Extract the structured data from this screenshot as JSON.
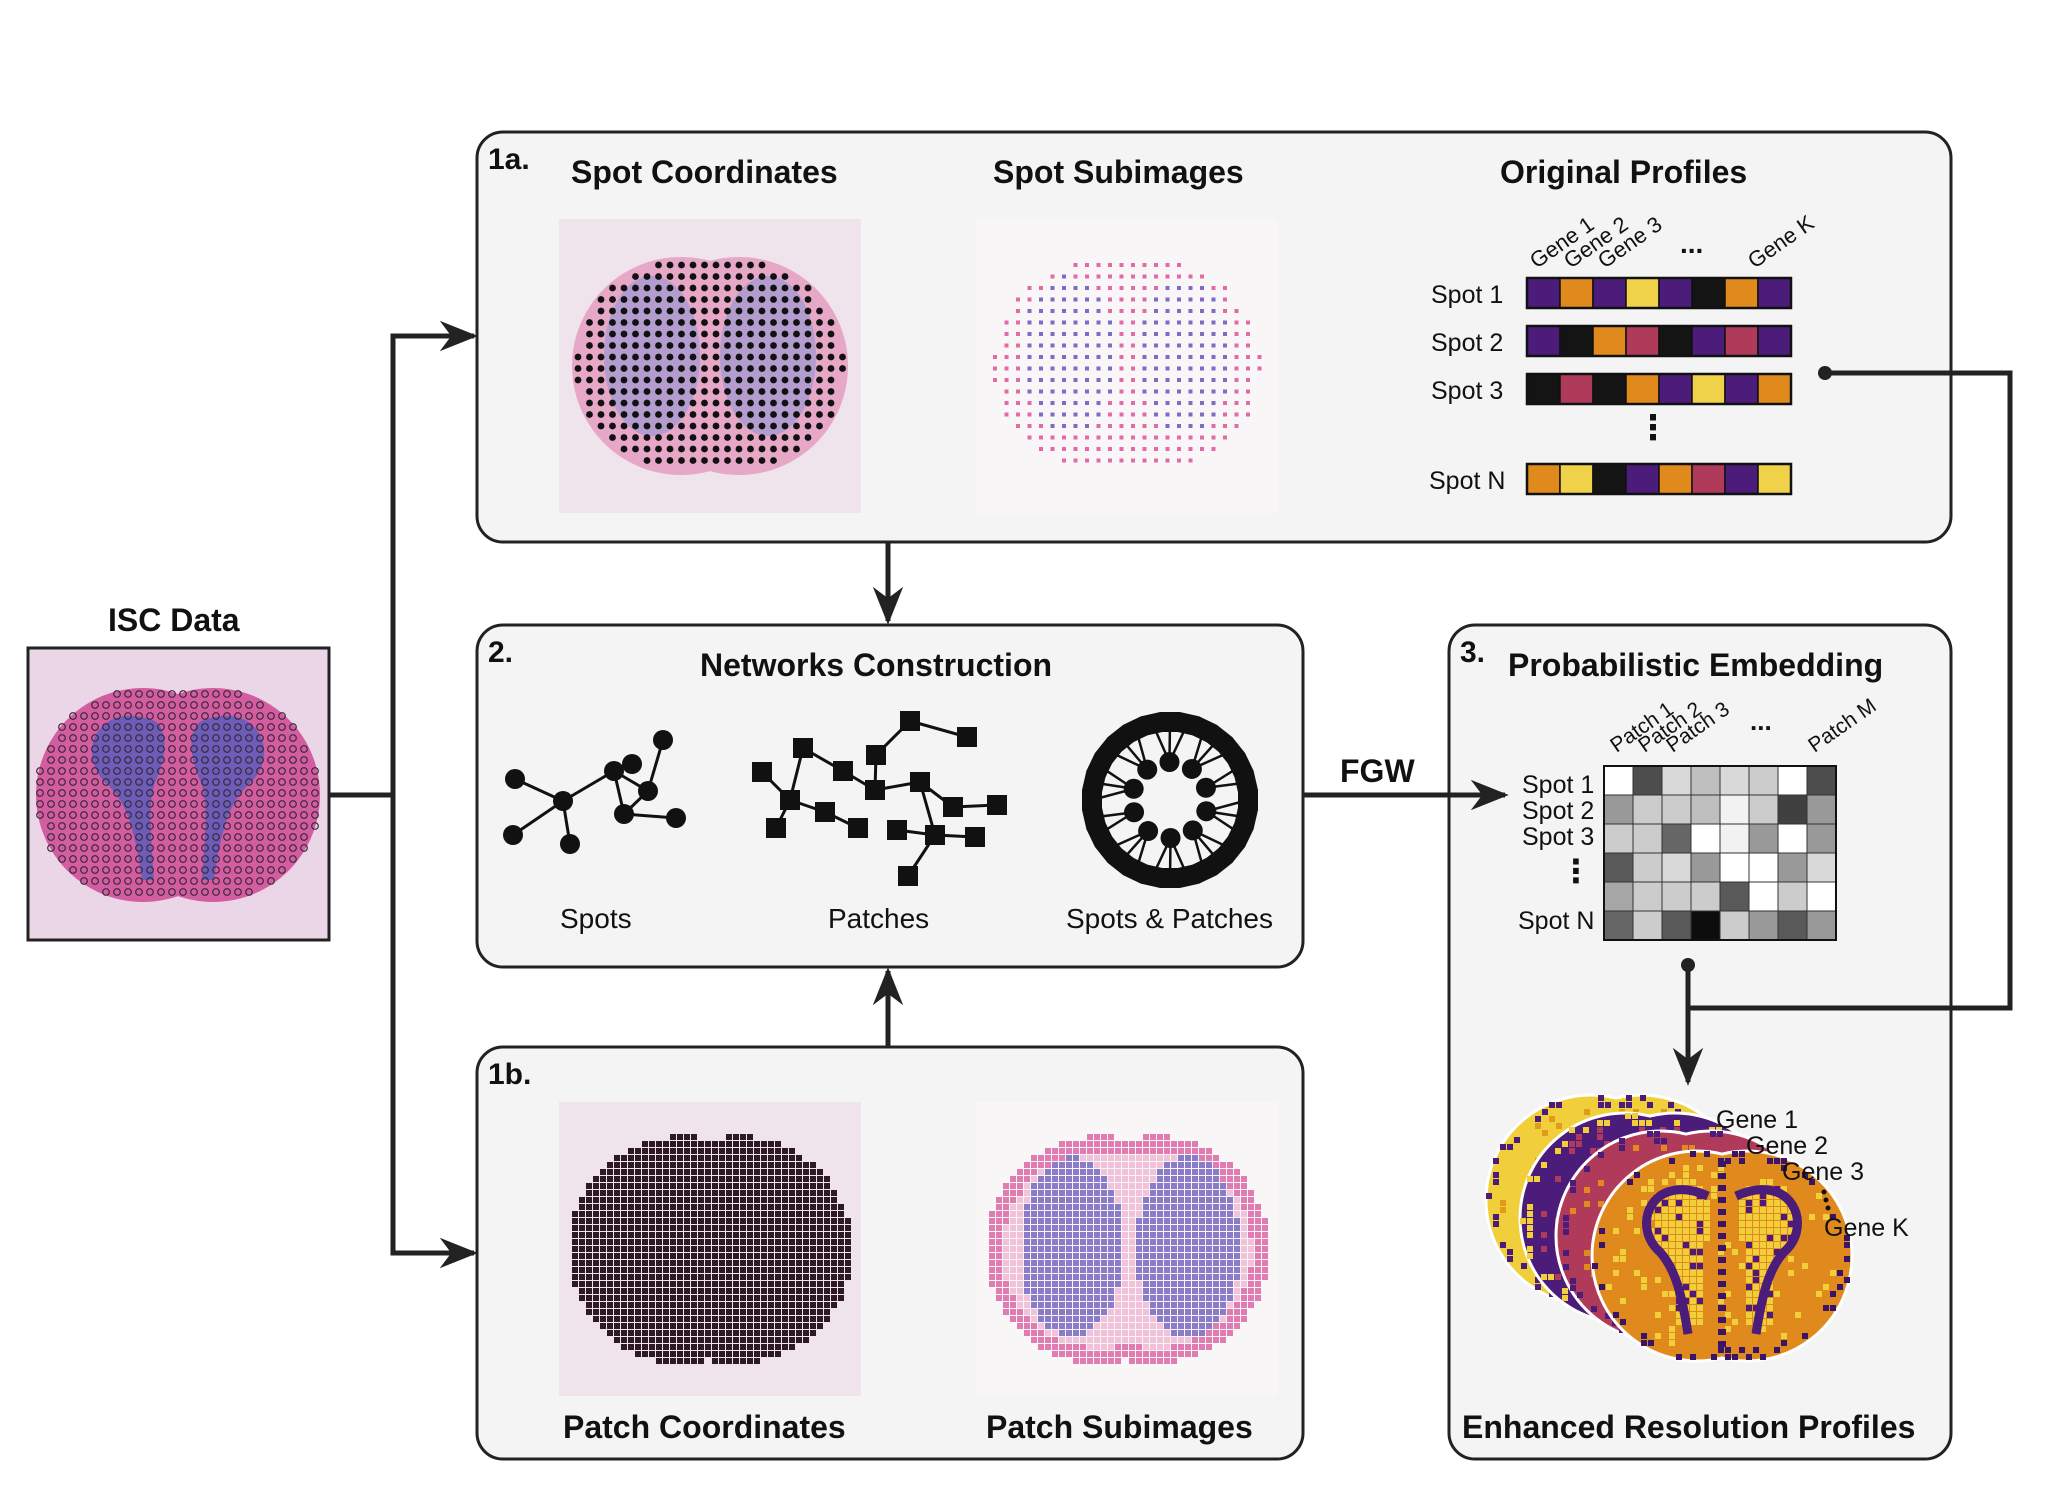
{
  "colors": {
    "panel_bg": "#f4f4f4",
    "panel_border": "#222222",
    "tissue_pink": "#e7a8c8",
    "tissue_purple": "#7e74c4",
    "purple": "#4b1c7a",
    "orange": "#e08a1e",
    "yellow": "#f0d24a",
    "black": "#141414",
    "crimson": "#b03a5a"
  },
  "isc": {
    "title": "ISC Data"
  },
  "panel_1a": {
    "id": "1a.",
    "spot_coordinates": "Spot Coordinates",
    "spot_subimages": "Spot Subimages",
    "original_profiles": "Original Profiles",
    "gene_headers": [
      "Gene 1",
      "Gene 2",
      "Gene 3",
      "...",
      "Gene K"
    ],
    "spots": [
      {
        "label": "Spot 1",
        "cells": [
          "purple",
          "orange",
          "purple",
          "yellow",
          "purple",
          "black",
          "orange",
          "purple"
        ]
      },
      {
        "label": "Spot 2",
        "cells": [
          "purple",
          "black",
          "orange",
          "crimson",
          "black",
          "purple",
          "crimson",
          "purple"
        ]
      },
      {
        "label": "Spot 3",
        "cells": [
          "black",
          "crimson",
          "black",
          "orange",
          "purple",
          "yellow",
          "purple",
          "orange"
        ]
      },
      {
        "label": "Spot N",
        "cells": [
          "orange",
          "yellow",
          "black",
          "purple",
          "orange",
          "crimson",
          "purple",
          "yellow"
        ]
      }
    ],
    "vdots": "⋮"
  },
  "panel_2": {
    "id": "2.",
    "title": "Networks Construction",
    "labels": [
      "Spots",
      "Patches",
      "Spots & Patches"
    ]
  },
  "panel_1b": {
    "id": "1b.",
    "patch_coordinates": "Patch Coordinates",
    "patch_subimages": "Patch Subimages"
  },
  "fgw": "FGW",
  "panel_3": {
    "id": "3.",
    "title": "Probabilistic Embedding",
    "patch_headers": [
      "Patch 1",
      "Patch 2",
      "Patch 3",
      "...",
      "Patch M"
    ],
    "row_labels": [
      "Spot 1",
      "Spot 2",
      "Spot 3",
      "⋮",
      "Spot N"
    ],
    "matrix": [
      [
        1.0,
        0.3,
        0.85,
        0.75,
        0.85,
        0.8,
        1.0,
        0.3
      ],
      [
        0.6,
        0.8,
        0.8,
        0.75,
        0.95,
        0.8,
        0.25,
        0.6
      ],
      [
        0.8,
        0.8,
        0.4,
        1.0,
        0.95,
        0.6,
        1.0,
        0.6
      ],
      [
        0.35,
        0.8,
        0.85,
        0.6,
        1.0,
        1.0,
        0.6,
        0.85
      ],
      [
        0.65,
        0.8,
        0.8,
        0.8,
        0.35,
        1.0,
        0.8,
        1.0
      ],
      [
        0.4,
        0.8,
        0.35,
        0.05,
        0.8,
        0.6,
        0.35,
        0.6
      ]
    ],
    "gene_labels": [
      "Gene 1",
      "Gene 2",
      "Gene 3",
      "Gene K"
    ],
    "bottom_title": "Enhanced Resolution Profiles"
  }
}
